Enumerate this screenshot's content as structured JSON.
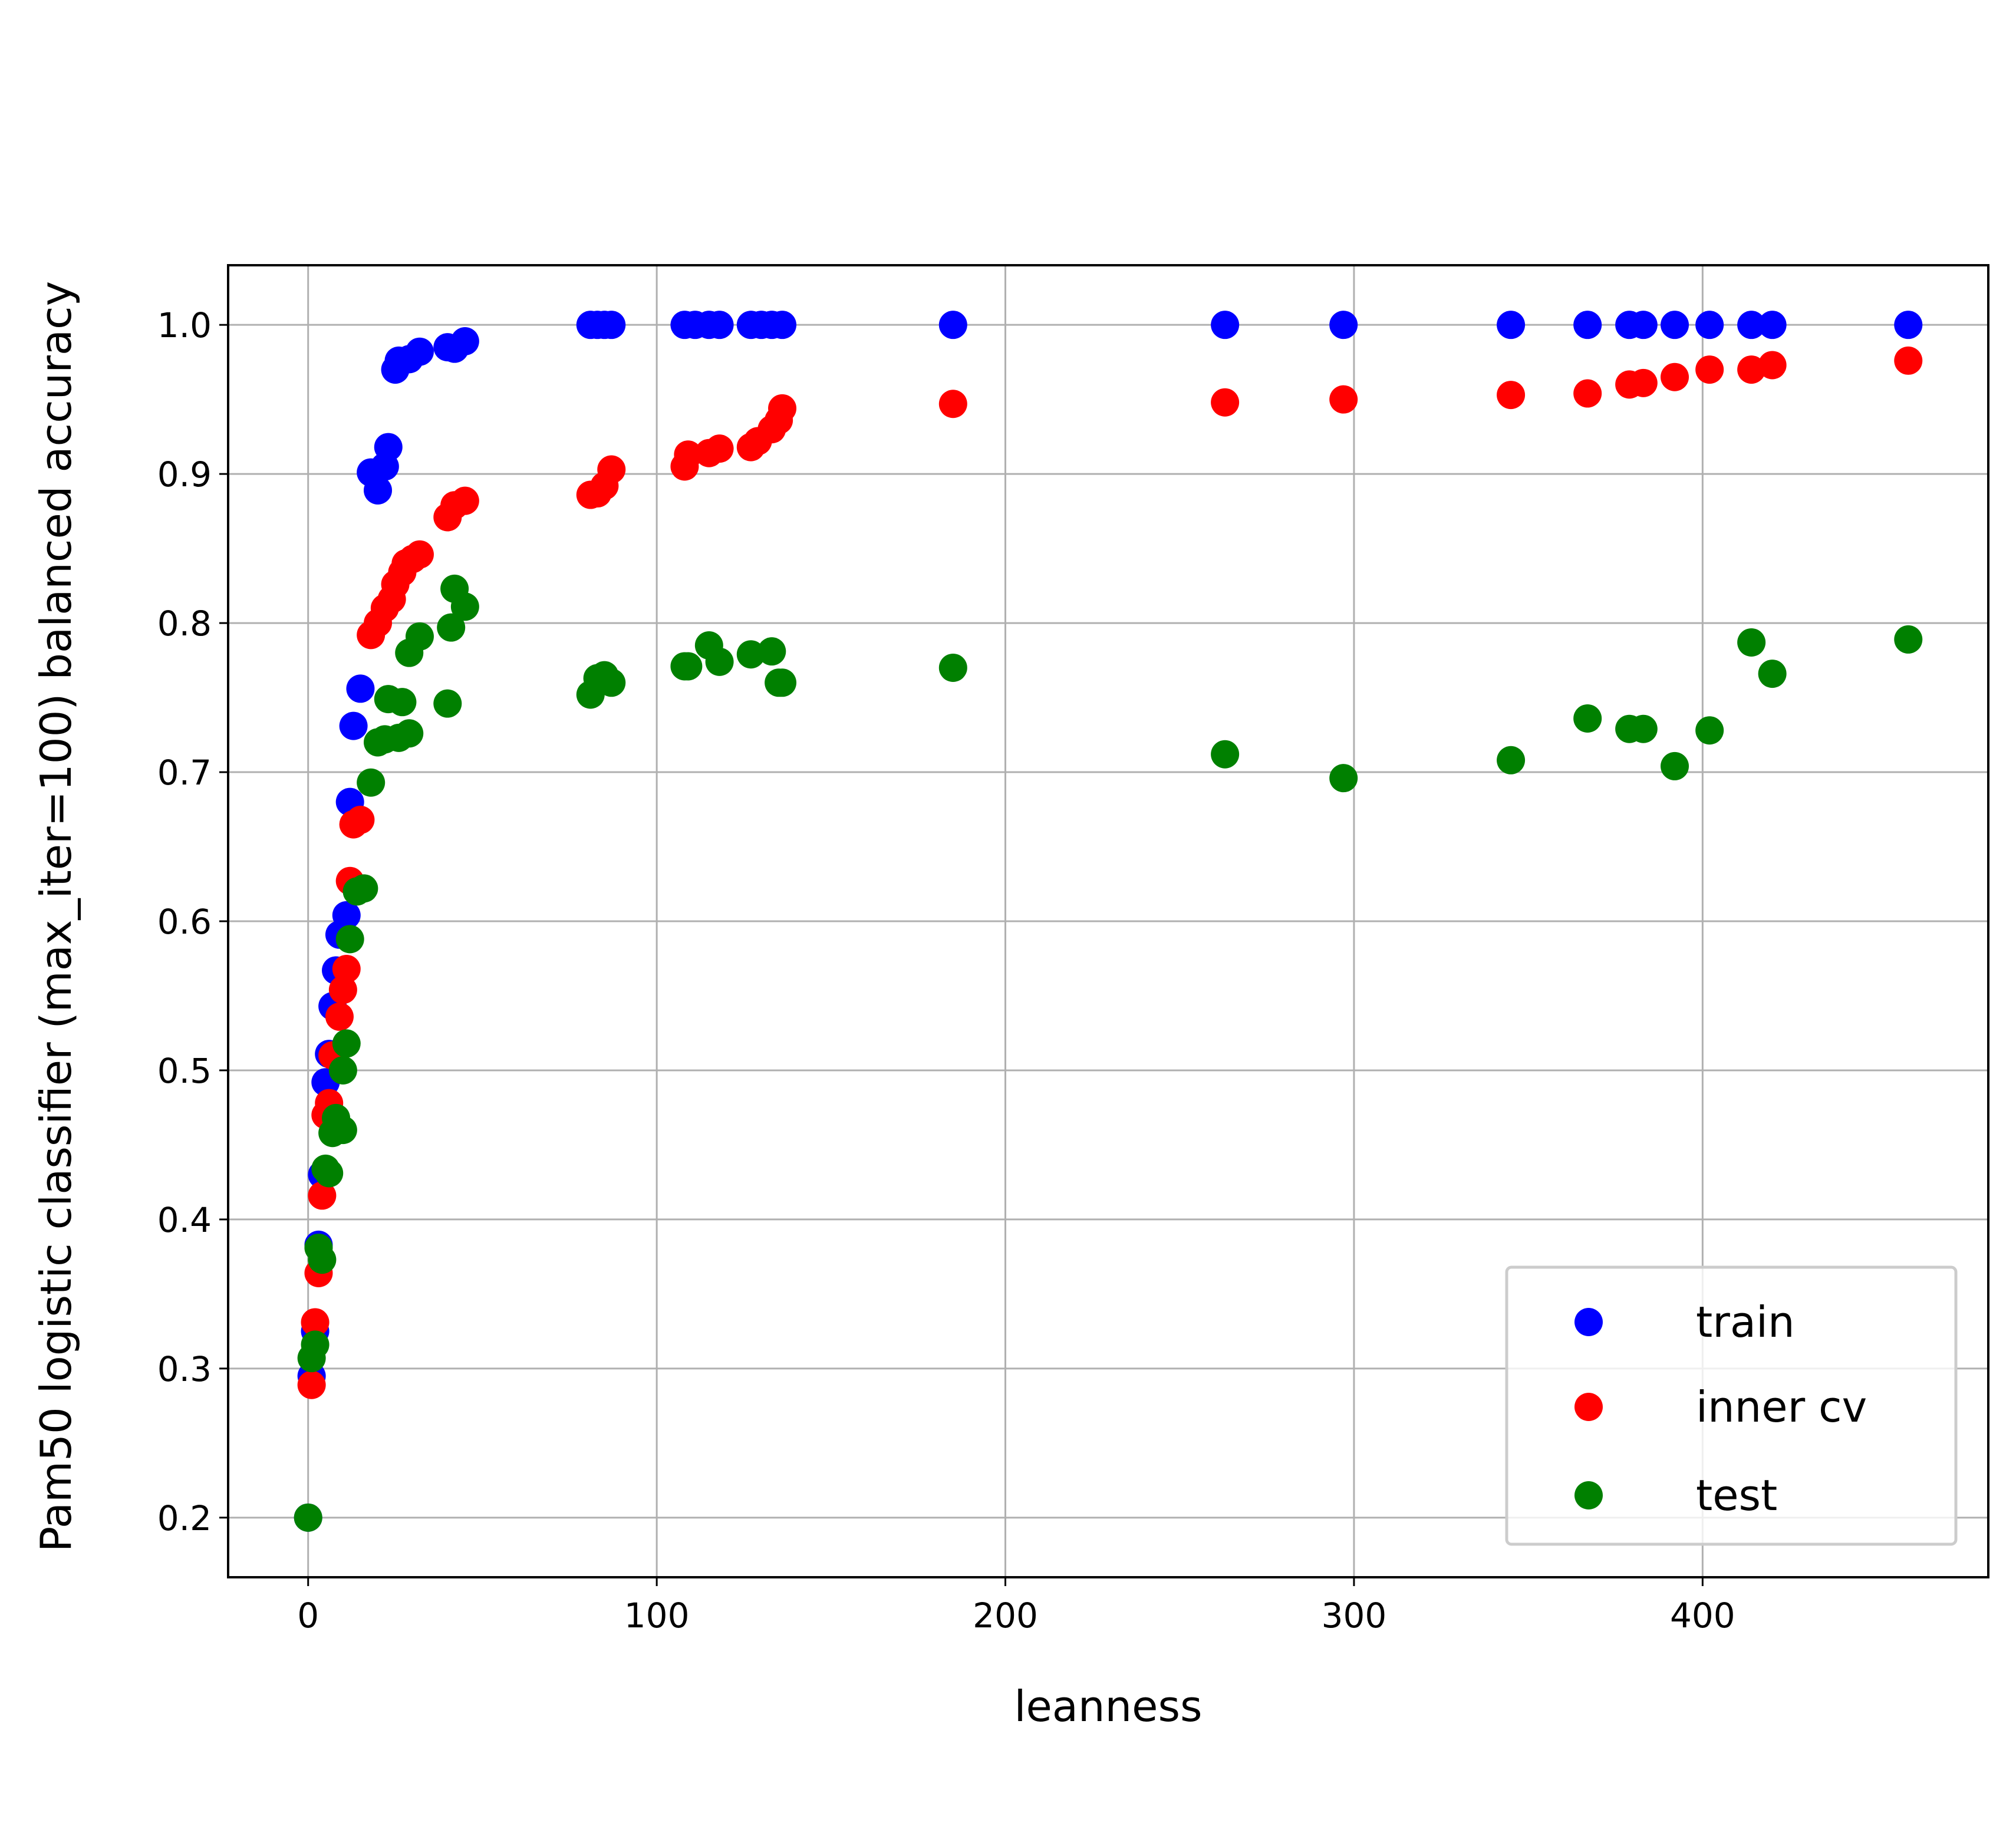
{
  "chart_data": {
    "type": "scatter",
    "title": "",
    "xlabel": "leanness",
    "ylabel": "Pam50 logistic classifier (max_iter=100) balanced accuracy",
    "xlim": [
      -22.95,
      481.95
    ],
    "ylim": [
      0.16,
      1.04
    ],
    "x_ticks": [
      0,
      100,
      200,
      300,
      400
    ],
    "x_tick_labels": [
      "0",
      "100",
      "200",
      "300",
      "400"
    ],
    "y_ticks": [
      0.2,
      0.3,
      0.4,
      0.5,
      0.6,
      0.7,
      0.8,
      0.9,
      1.0
    ],
    "y_tick_labels": [
      "0.2",
      "0.3",
      "0.4",
      "0.5",
      "0.6",
      "0.7",
      "0.8",
      "0.9",
      "1.0"
    ],
    "grid": true,
    "legend_position": "lower-right",
    "series": [
      {
        "name": "train",
        "color": "#0000ff",
        "points": [
          [
            0,
            0.2
          ],
          [
            1,
            0.295
          ],
          [
            2,
            0.325
          ],
          [
            3,
            0.383
          ],
          [
            4,
            0.43
          ],
          [
            5,
            0.492
          ],
          [
            6,
            0.511
          ],
          [
            7,
            0.543
          ],
          [
            8,
            0.567
          ],
          [
            9,
            0.591
          ],
          [
            10,
            0.592
          ],
          [
            11,
            0.604
          ],
          [
            12,
            0.68
          ],
          [
            13,
            0.731
          ],
          [
            15,
            0.756
          ],
          [
            18,
            0.901
          ],
          [
            20,
            0.889
          ],
          [
            22,
            0.905
          ],
          [
            23,
            0.918
          ],
          [
            25,
            0.97
          ],
          [
            26,
            0.976
          ],
          [
            29,
            0.977
          ],
          [
            32,
            0.982
          ],
          [
            40,
            0.985
          ],
          [
            42,
            0.984
          ],
          [
            45,
            0.989
          ],
          [
            81,
            1.0
          ],
          [
            83,
            1.0
          ],
          [
            85,
            1.0
          ],
          [
            87,
            1.0
          ],
          [
            108,
            1.0
          ],
          [
            111,
            1.0
          ],
          [
            115,
            1.0
          ],
          [
            118,
            1.0
          ],
          [
            127,
            1.0
          ],
          [
            130,
            1.0
          ],
          [
            133,
            1.0
          ],
          [
            136,
            1.0
          ],
          [
            185,
            1.0
          ],
          [
            263,
            1.0
          ],
          [
            297,
            1.0
          ],
          [
            345,
            1.0
          ],
          [
            367,
            1.0
          ],
          [
            379,
            1.0
          ],
          [
            383,
            1.0
          ],
          [
            392,
            1.0
          ],
          [
            402,
            1.0
          ],
          [
            414,
            1.0
          ],
          [
            420,
            1.0
          ],
          [
            459,
            1.0
          ]
        ]
      },
      {
        "name": "inner cv",
        "color": "#ff0000",
        "points": [
          [
            1,
            0.289
          ],
          [
            2,
            0.331
          ],
          [
            3,
            0.364
          ],
          [
            4,
            0.416
          ],
          [
            5,
            0.47
          ],
          [
            6,
            0.478
          ],
          [
            7,
            0.51
          ],
          [
            9,
            0.536
          ],
          [
            10,
            0.554
          ],
          [
            11,
            0.568
          ],
          [
            12,
            0.627
          ],
          [
            13,
            0.665
          ],
          [
            15,
            0.668
          ],
          [
            18,
            0.792
          ],
          [
            20,
            0.8
          ],
          [
            22,
            0.81
          ],
          [
            24,
            0.816
          ],
          [
            25,
            0.826
          ],
          [
            27,
            0.834
          ],
          [
            28,
            0.84
          ],
          [
            30,
            0.843
          ],
          [
            32,
            0.846
          ],
          [
            40,
            0.871
          ],
          [
            42,
            0.879
          ],
          [
            45,
            0.882
          ],
          [
            81,
            0.886
          ],
          [
            83,
            0.887
          ],
          [
            85,
            0.892
          ],
          [
            87,
            0.903
          ],
          [
            108,
            0.905
          ],
          [
            109,
            0.913
          ],
          [
            115,
            0.914
          ],
          [
            118,
            0.917
          ],
          [
            127,
            0.918
          ],
          [
            129,
            0.922
          ],
          [
            133,
            0.93
          ],
          [
            135,
            0.936
          ],
          [
            136,
            0.944
          ],
          [
            185,
            0.947
          ],
          [
            263,
            0.948
          ],
          [
            297,
            0.95
          ],
          [
            345,
            0.953
          ],
          [
            367,
            0.954
          ],
          [
            379,
            0.96
          ],
          [
            383,
            0.961
          ],
          [
            392,
            0.965
          ],
          [
            402,
            0.97
          ],
          [
            414,
            0.97
          ],
          [
            420,
            0.973
          ],
          [
            459,
            0.976
          ]
        ]
      },
      {
        "name": "test",
        "color": "#008000",
        "points": [
          [
            0,
            0.2
          ],
          [
            1,
            0.307
          ],
          [
            2,
            0.316
          ],
          [
            3,
            0.381
          ],
          [
            4,
            0.373
          ],
          [
            5,
            0.434
          ],
          [
            6,
            0.431
          ],
          [
            7,
            0.458
          ],
          [
            8,
            0.468
          ],
          [
            10,
            0.46
          ],
          [
            10,
            0.5
          ],
          [
            11,
            0.518
          ],
          [
            12,
            0.588
          ],
          [
            14,
            0.62
          ],
          [
            16,
            0.622
          ],
          [
            18,
            0.693
          ],
          [
            20,
            0.72
          ],
          [
            22,
            0.722
          ],
          [
            23,
            0.749
          ],
          [
            26,
            0.723
          ],
          [
            27,
            0.747
          ],
          [
            29,
            0.726
          ],
          [
            29,
            0.78
          ],
          [
            32,
            0.791
          ],
          [
            40,
            0.746
          ],
          [
            41,
            0.797
          ],
          [
            42,
            0.823
          ],
          [
            45,
            0.811
          ],
          [
            81,
            0.752
          ],
          [
            83,
            0.763
          ],
          [
            85,
            0.765
          ],
          [
            87,
            0.76
          ],
          [
            108,
            0.771
          ],
          [
            109,
            0.771
          ],
          [
            115,
            0.785
          ],
          [
            118,
            0.774
          ],
          [
            127,
            0.779
          ],
          [
            133,
            0.781
          ],
          [
            135,
            0.76
          ],
          [
            136,
            0.76
          ],
          [
            185,
            0.77
          ],
          [
            263,
            0.712
          ],
          [
            297,
            0.696
          ],
          [
            345,
            0.708
          ],
          [
            367,
            0.736
          ],
          [
            379,
            0.729
          ],
          [
            383,
            0.729
          ],
          [
            392,
            0.704
          ],
          [
            402,
            0.728
          ],
          [
            414,
            0.787
          ],
          [
            420,
            0.766
          ],
          [
            459,
            0.789
          ]
        ]
      }
    ]
  }
}
